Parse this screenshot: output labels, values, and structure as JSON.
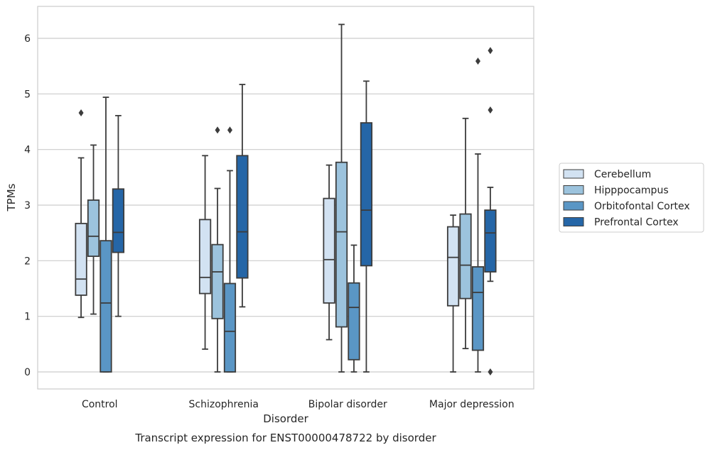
{
  "chart_data": {
    "type": "box",
    "title": "Transcript expression for ENST00000478722 by disorder",
    "xlabel": "Disorder",
    "ylabel": "TPMs",
    "ylim": [
      -0.3,
      6.55
    ],
    "yticks": [
      "0",
      "1",
      "2",
      "3",
      "4",
      "5",
      "6"
    ],
    "categories": [
      "Control",
      "Schizophrenia",
      "Bipolar disorder",
      "Major depression"
    ],
    "legend_position": "right",
    "grid": true,
    "series": [
      {
        "name": "Cerebellum",
        "color": "#d2e2f2",
        "boxes": [
          {
            "whislo": 0.98,
            "q1": 1.38,
            "med": 1.67,
            "q3": 2.67,
            "whishi": 3.85,
            "fliers": [
              4.66
            ]
          },
          {
            "whislo": 0.41,
            "q1": 1.41,
            "med": 1.7,
            "q3": 2.74,
            "whishi": 3.89,
            "fliers": []
          },
          {
            "whislo": 0.58,
            "q1": 1.24,
            "med": 2.02,
            "q3": 3.12,
            "whishi": 3.72,
            "fliers": []
          },
          {
            "whislo": 0.0,
            "q1": 1.19,
            "med": 2.06,
            "q3": 2.61,
            "whishi": 2.82,
            "fliers": []
          }
        ]
      },
      {
        "name": "Hipppocampus",
        "color": "#9cc3dd",
        "boxes": [
          {
            "whislo": 1.04,
            "q1": 2.08,
            "med": 2.44,
            "q3": 3.09,
            "whishi": 4.08,
            "fliers": []
          },
          {
            "whislo": 0.0,
            "q1": 0.96,
            "med": 1.8,
            "q3": 2.29,
            "whishi": 3.3,
            "fliers": [
              4.35
            ]
          },
          {
            "whislo": 0.0,
            "q1": 0.81,
            "med": 2.52,
            "q3": 3.77,
            "whishi": 6.25,
            "fliers": []
          },
          {
            "whislo": 0.42,
            "q1": 1.32,
            "med": 1.92,
            "q3": 2.84,
            "whishi": 4.56,
            "fliers": []
          }
        ]
      },
      {
        "name": "Orbitofontal Cortex",
        "color": "#5a96c5",
        "boxes": [
          {
            "whislo": 0.0,
            "q1": 0.0,
            "med": 1.24,
            "q3": 2.36,
            "whishi": 4.94,
            "fliers": []
          },
          {
            "whislo": 0.0,
            "q1": 0.0,
            "med": 0.73,
            "q3": 1.59,
            "whishi": 3.62,
            "fliers": [
              4.35
            ]
          },
          {
            "whislo": 0.0,
            "q1": 0.22,
            "med": 1.16,
            "q3": 1.6,
            "whishi": 2.28,
            "fliers": []
          },
          {
            "whislo": 0.0,
            "q1": 0.39,
            "med": 1.43,
            "q3": 1.89,
            "whishi": 3.92,
            "fliers": [
              5.59
            ]
          }
        ]
      },
      {
        "name": "Prefrontal Cortex",
        "color": "#2566a7",
        "boxes": [
          {
            "whislo": 1.0,
            "q1": 2.15,
            "med": 2.51,
            "q3": 3.29,
            "whishi": 4.61,
            "fliers": []
          },
          {
            "whislo": 1.17,
            "q1": 1.69,
            "med": 2.52,
            "q3": 3.89,
            "whishi": 5.17,
            "fliers": []
          },
          {
            "whislo": 0.0,
            "q1": 1.91,
            "med": 2.91,
            "q3": 4.48,
            "whishi": 5.23,
            "fliers": []
          },
          {
            "whislo": 1.63,
            "q1": 1.8,
            "med": 2.5,
            "q3": 2.91,
            "whishi": 3.32,
            "fliers": [
              0.0,
              4.71,
              5.78
            ]
          }
        ]
      }
    ]
  }
}
